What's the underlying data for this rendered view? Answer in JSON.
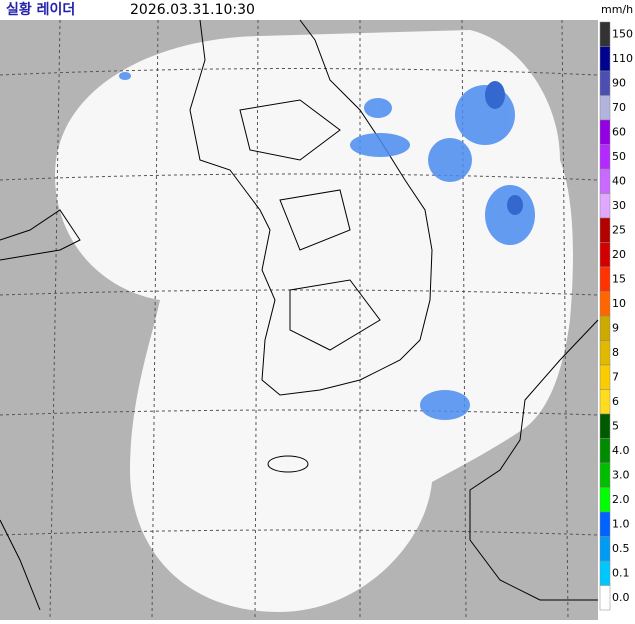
{
  "header": {
    "title": "실황 레이더",
    "timestamp": "2026.03.31.10:30",
    "unit": "mm/h"
  },
  "legend": {
    "levels": [
      {
        "label": "150",
        "color": "#333333"
      },
      {
        "label": "110",
        "color": "#000390"
      },
      {
        "label": "90",
        "color": "#4c4eb1"
      },
      {
        "label": "70",
        "color": "#b3b4de"
      },
      {
        "label": "60",
        "color": "#9300e4"
      },
      {
        "label": "50",
        "color": "#b329ff"
      },
      {
        "label": "40",
        "color": "#c969ff"
      },
      {
        "label": "30",
        "color": "#e0a9ff"
      },
      {
        "label": "25",
        "color": "#b40000"
      },
      {
        "label": "20",
        "color": "#d20000"
      },
      {
        "label": "15",
        "color": "#ff3200"
      },
      {
        "label": "10",
        "color": "#ff6600"
      },
      {
        "label": "9",
        "color": "#ccaa00"
      },
      {
        "label": "8",
        "color": "#e0b900"
      },
      {
        "label": "7",
        "color": "#f9cd00"
      },
      {
        "label": "6",
        "color": "#ffdc1f"
      },
      {
        "label": "5",
        "color": "#005a00"
      },
      {
        "label": "4.0",
        "color": "#008c00"
      },
      {
        "label": "3.0",
        "color": "#00be00"
      },
      {
        "label": "2.0",
        "color": "#00ff00"
      },
      {
        "label": "1.0",
        "color": "#0063ff"
      },
      {
        "label": "0.5",
        "color": "#009bf5"
      },
      {
        "label": "0.1",
        "color": "#00c8ff"
      },
      {
        "label": "0.0",
        "color": "#ffffff"
      }
    ]
  }
}
